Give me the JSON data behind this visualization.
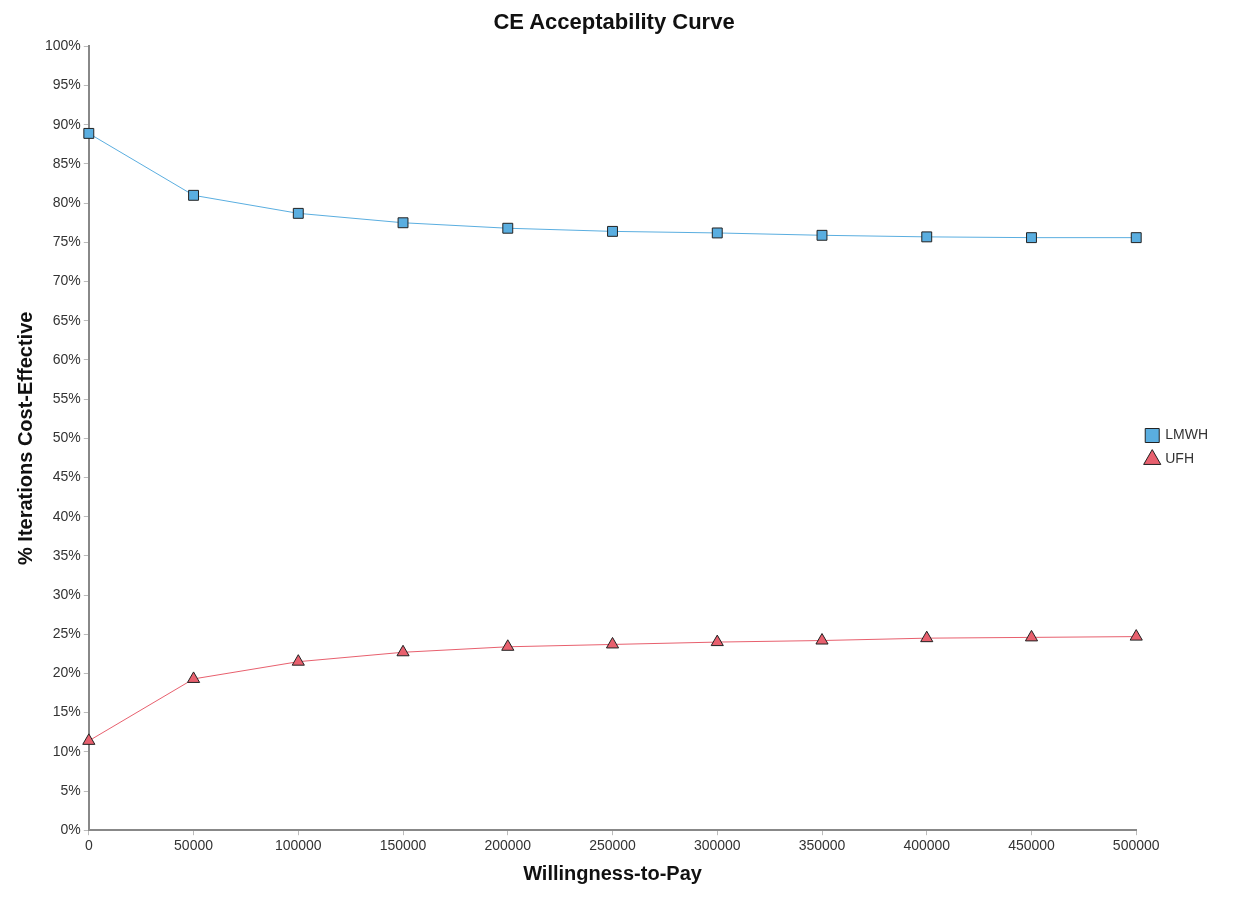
{
  "chart_data": {
    "type": "line",
    "title": "CE Acceptability Curve",
    "xlabel": "Willingness-to-Pay",
    "ylabel": "% Iterations Cost-Effective",
    "x": [
      0,
      50000,
      100000,
      150000,
      200000,
      250000,
      300000,
      350000,
      400000,
      450000,
      500000
    ],
    "series": [
      {
        "name": "LMWH",
        "color": "#5aaee0",
        "marker": "square",
        "values": [
          88.9,
          81.0,
          78.7,
          77.5,
          76.8,
          76.4,
          76.2,
          75.9,
          75.7,
          75.6,
          75.6
        ]
      },
      {
        "name": "UFH",
        "color": "#e8606e",
        "marker": "triangle",
        "values": [
          11.4,
          19.3,
          21.5,
          22.7,
          23.4,
          23.7,
          24.0,
          24.2,
          24.5,
          24.6,
          24.7
        ]
      }
    ],
    "xlim": [
      0,
      500000
    ],
    "xticks": [
      0,
      50000,
      100000,
      150000,
      200000,
      250000,
      300000,
      350000,
      400000,
      450000,
      500000
    ],
    "ylim": [
      0,
      100
    ],
    "yticks": [
      {
        "value": 0,
        "label": "0%"
      },
      {
        "value": 5,
        "label": "5%"
      },
      {
        "value": 10,
        "label": "10%"
      },
      {
        "value": 15,
        "label": "15%"
      },
      {
        "value": 20,
        "label": "20%"
      },
      {
        "value": 25,
        "label": "25%"
      },
      {
        "value": 30,
        "label": "30%"
      },
      {
        "value": 35,
        "label": "35%"
      },
      {
        "value": 40,
        "label": "40%"
      },
      {
        "value": 45,
        "label": "45%"
      },
      {
        "value": 50,
        "label": "50%"
      },
      {
        "value": 55,
        "label": "55%"
      },
      {
        "value": 60,
        "label": "60%"
      },
      {
        "value": 65,
        "label": "65%"
      },
      {
        "value": 70,
        "label": "70%"
      },
      {
        "value": 75,
        "label": "75%"
      },
      {
        "value": 80,
        "label": "80%"
      },
      {
        "value": 85,
        "label": "85%"
      },
      {
        "value": 90,
        "label": "90%"
      },
      {
        "value": 95,
        "label": "95%"
      },
      {
        "value": 100,
        "label": "100%"
      }
    ],
    "grid": false,
    "legend": "right",
    "line_style": "solid"
  }
}
